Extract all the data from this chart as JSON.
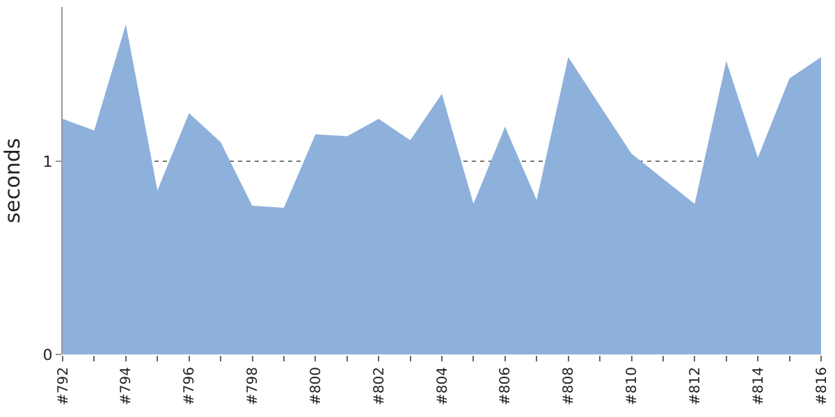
{
  "chart_data": {
    "type": "area",
    "ylabel": "seconds",
    "categories": [
      "#792",
      null,
      "#794",
      null,
      "#796",
      null,
      "#798",
      null,
      "#800",
      null,
      "#802",
      null,
      "#804",
      null,
      "#806",
      null,
      "#808",
      null,
      "#810",
      null,
      "#812",
      null,
      "#814",
      null,
      "#816"
    ],
    "series": [
      {
        "color": "#8eb1db",
        "values": [
          1.22,
          1.16,
          1.71,
          0.85,
          1.25,
          1.1,
          0.77,
          0.76,
          1.14,
          1.13,
          1.22,
          1.11,
          1.35,
          0.78,
          1.18,
          0.8,
          1.54,
          1.29,
          1.04,
          0.91,
          0.78,
          1.52,
          1.02,
          1.43,
          1.54
        ]
      }
    ],
    "ylim": [
      0,
      1.8
    ],
    "yticks": [
      0,
      1
    ],
    "grid": "y"
  }
}
